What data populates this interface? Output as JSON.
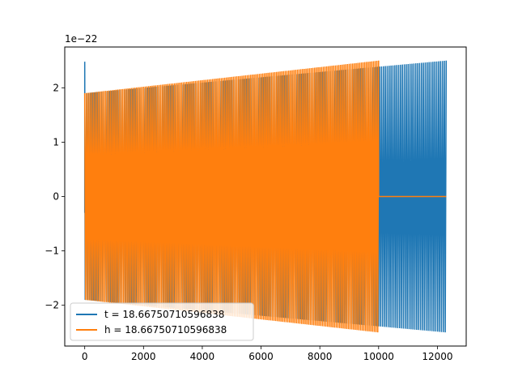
{
  "chart_data": {
    "type": "line",
    "title": "",
    "xlabel": "",
    "ylabel": "",
    "offset_text": "1e−22",
    "xlim": [
      -680,
      12980
    ],
    "ylim": [
      -2.75,
      2.75
    ],
    "x_ticks": [
      0,
      2000,
      4000,
      6000,
      8000,
      10000,
      12000
    ],
    "x_tick_labels": [
      "0",
      "2000",
      "4000",
      "6000",
      "8000",
      "10000",
      "12000"
    ],
    "y_ticks": [
      -2,
      -1,
      0,
      1,
      2
    ],
    "y_tick_labels": [
      "−2",
      "−1",
      "0",
      "1",
      "2"
    ],
    "grid": false,
    "legend_position": "lower-left",
    "series": [
      {
        "name": "t = 18.66750710596838",
        "color": "#1f77b4",
        "x_start": 0,
        "x_end": 12300,
        "amplitude_start": 1.9,
        "amplitude_end": 2.5,
        "cycles": 190,
        "initial_spike": 2.48
      },
      {
        "name": "h = 18.66750710596838",
        "color": "#ff7f0e",
        "x_start": 0,
        "x_end": 10000,
        "amplitude_start": 1.9,
        "amplitude_end": 2.5,
        "cycles": 170,
        "tail_x_end": 12300,
        "tail_value": 0
      }
    ]
  }
}
